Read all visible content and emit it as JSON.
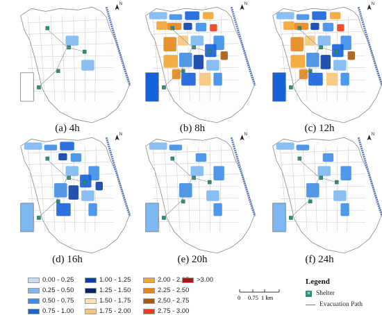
{
  "panels": [
    {
      "caption": "(a) 4h",
      "level": 0
    },
    {
      "caption": "(b) 8h",
      "level": 3
    },
    {
      "caption": "(c) 12h",
      "level": 3
    },
    {
      "caption": "(d) 16h",
      "level": 2
    },
    {
      "caption": "(e) 20h",
      "level": 1
    },
    {
      "caption": "(f) 24h",
      "level": 1
    }
  ],
  "north_label": "N",
  "depth_legend": [
    {
      "label": "0.00 - 0.25",
      "color": "#c6d9f5"
    },
    {
      "label": "0.25 - 0.50",
      "color": "#7db8f2"
    },
    {
      "label": "0.50 - 0.75",
      "color": "#3d8ee8"
    },
    {
      "label": "0.75 - 1.00",
      "color": "#1562d9"
    },
    {
      "label": "1.00 - 1.25",
      "color": "#0b3fa8"
    },
    {
      "label": "1.25 - 1.50",
      "color": "#06246e"
    },
    {
      "label": "1.50 - 1.75",
      "color": "#f7e3b5"
    },
    {
      "label": "1.75 - 2.00",
      "color": "#f5c77a"
    },
    {
      "label": "2.00 - 2.25",
      "color": "#f2a632"
    },
    {
      "label": "2.25 - 2.50",
      "color": "#e6861a"
    },
    {
      "label": "2.50 - 2.75",
      "color": "#a85a12"
    },
    {
      "label": "2.75 - 3.00",
      "color": "#f03a1a"
    },
    {
      "label": ">3.00",
      "color": "#b01414"
    }
  ],
  "scale_bar": {
    "tick0": "0",
    "tick1": "0.75",
    "tick2": "1 km"
  },
  "legend": {
    "title": "Legend",
    "shelter_label": "Shelter",
    "shelter_glyph": "✕",
    "path_label": "Evacuation Path"
  }
}
